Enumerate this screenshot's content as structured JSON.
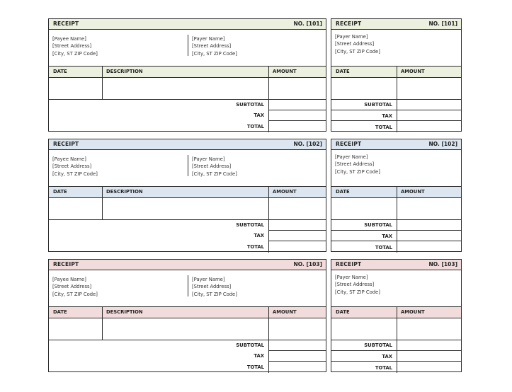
{
  "labels": {
    "receipt": "RECEIPT",
    "payee_name": "[Payee Name]",
    "payer_name": "[Payer Name]",
    "street": "[Street Address]",
    "city": "[City, ST  ZIP Code]",
    "date": "DATE",
    "description": "DESCRIPTION",
    "amount": "AMOUNT",
    "subtotal": "SUBTOTAL",
    "tax": "TAX",
    "total": "TOTAL"
  },
  "receipts": [
    {
      "number": "NO. [101]",
      "color": "#ebf1de"
    },
    {
      "number": "NO. [102]",
      "color": "#dce6f1"
    },
    {
      "number": "NO. [103]",
      "color": "#f2dcdb"
    }
  ]
}
